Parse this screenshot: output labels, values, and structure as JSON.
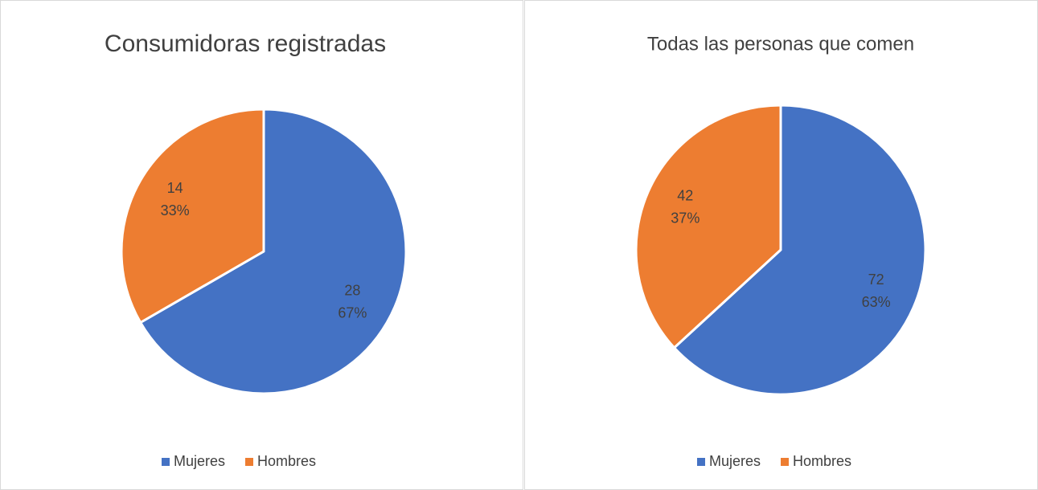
{
  "chart_data": [
    {
      "type": "pie",
      "title": "Consumidoras registradas",
      "categories": [
        "Mujeres",
        "Hombres"
      ],
      "values": [
        28,
        14
      ],
      "percent_labels": [
        "67%",
        "33%"
      ],
      "colors": [
        "#4472c4",
        "#ed7d31"
      ],
      "legend": "bottom"
    },
    {
      "type": "pie",
      "title": "Todas las personas que comen",
      "categories": [
        "Mujeres",
        "Hombres"
      ],
      "values": [
        72,
        42
      ],
      "percent_labels": [
        "63%",
        "37%"
      ],
      "colors": [
        "#4472c4",
        "#ed7d31"
      ],
      "legend": "bottom"
    }
  ]
}
